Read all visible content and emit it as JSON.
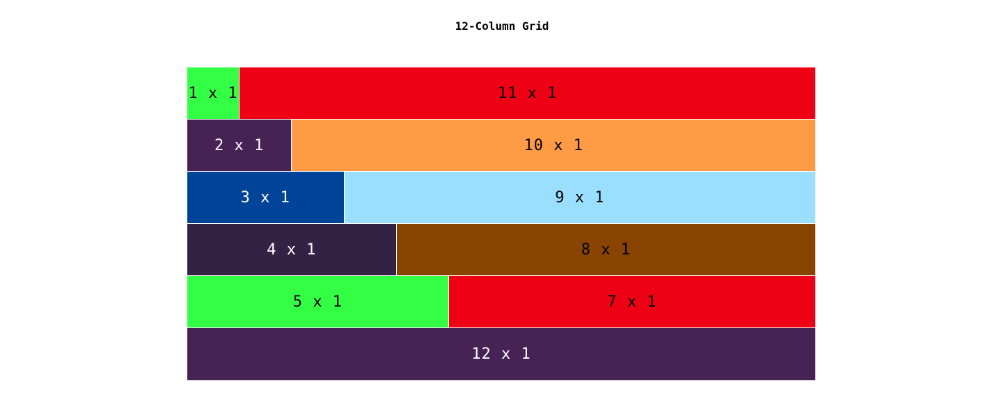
{
  "title": "12-Column Grid",
  "grid": {
    "columns": 12,
    "rows": [
      {
        "cells": [
          {
            "label": "1 x 1",
            "span": 1,
            "color": "#33ff44",
            "text_color": "#000000"
          },
          {
            "label": "11 x 1",
            "span": 11,
            "color": "#ee0015",
            "text_color": "#000000"
          }
        ]
      },
      {
        "cells": [
          {
            "label": "2 x 1",
            "span": 2,
            "color": "#462255",
            "text_color": "#ffffff"
          },
          {
            "label": "10 x 1",
            "span": 10,
            "color": "#ff9a45",
            "text_color": "#000000"
          }
        ]
      },
      {
        "cells": [
          {
            "label": "3 x 1",
            "span": 3,
            "color": "#004499",
            "text_color": "#ffffff"
          },
          {
            "label": "9 x 1",
            "span": 9,
            "color": "#9adfff",
            "text_color": "#000000"
          }
        ]
      },
      {
        "cells": [
          {
            "label": "4 x 1",
            "span": 4,
            "color": "#332244",
            "text_color": "#ffffff"
          },
          {
            "label": "8 x 1",
            "span": 8,
            "color": "#884400",
            "text_color": "#000000"
          }
        ]
      },
      {
        "cells": [
          {
            "label": "5 x 1",
            "span": 5,
            "color": "#33ff44",
            "text_color": "#000000"
          },
          {
            "label": "7 x 1",
            "span": 7,
            "color": "#ee0015",
            "text_color": "#000000"
          }
        ]
      },
      {
        "cells": [
          {
            "label": "12 x 1",
            "span": 12,
            "color": "#462255",
            "text_color": "#ffffff"
          }
        ]
      }
    ]
  }
}
